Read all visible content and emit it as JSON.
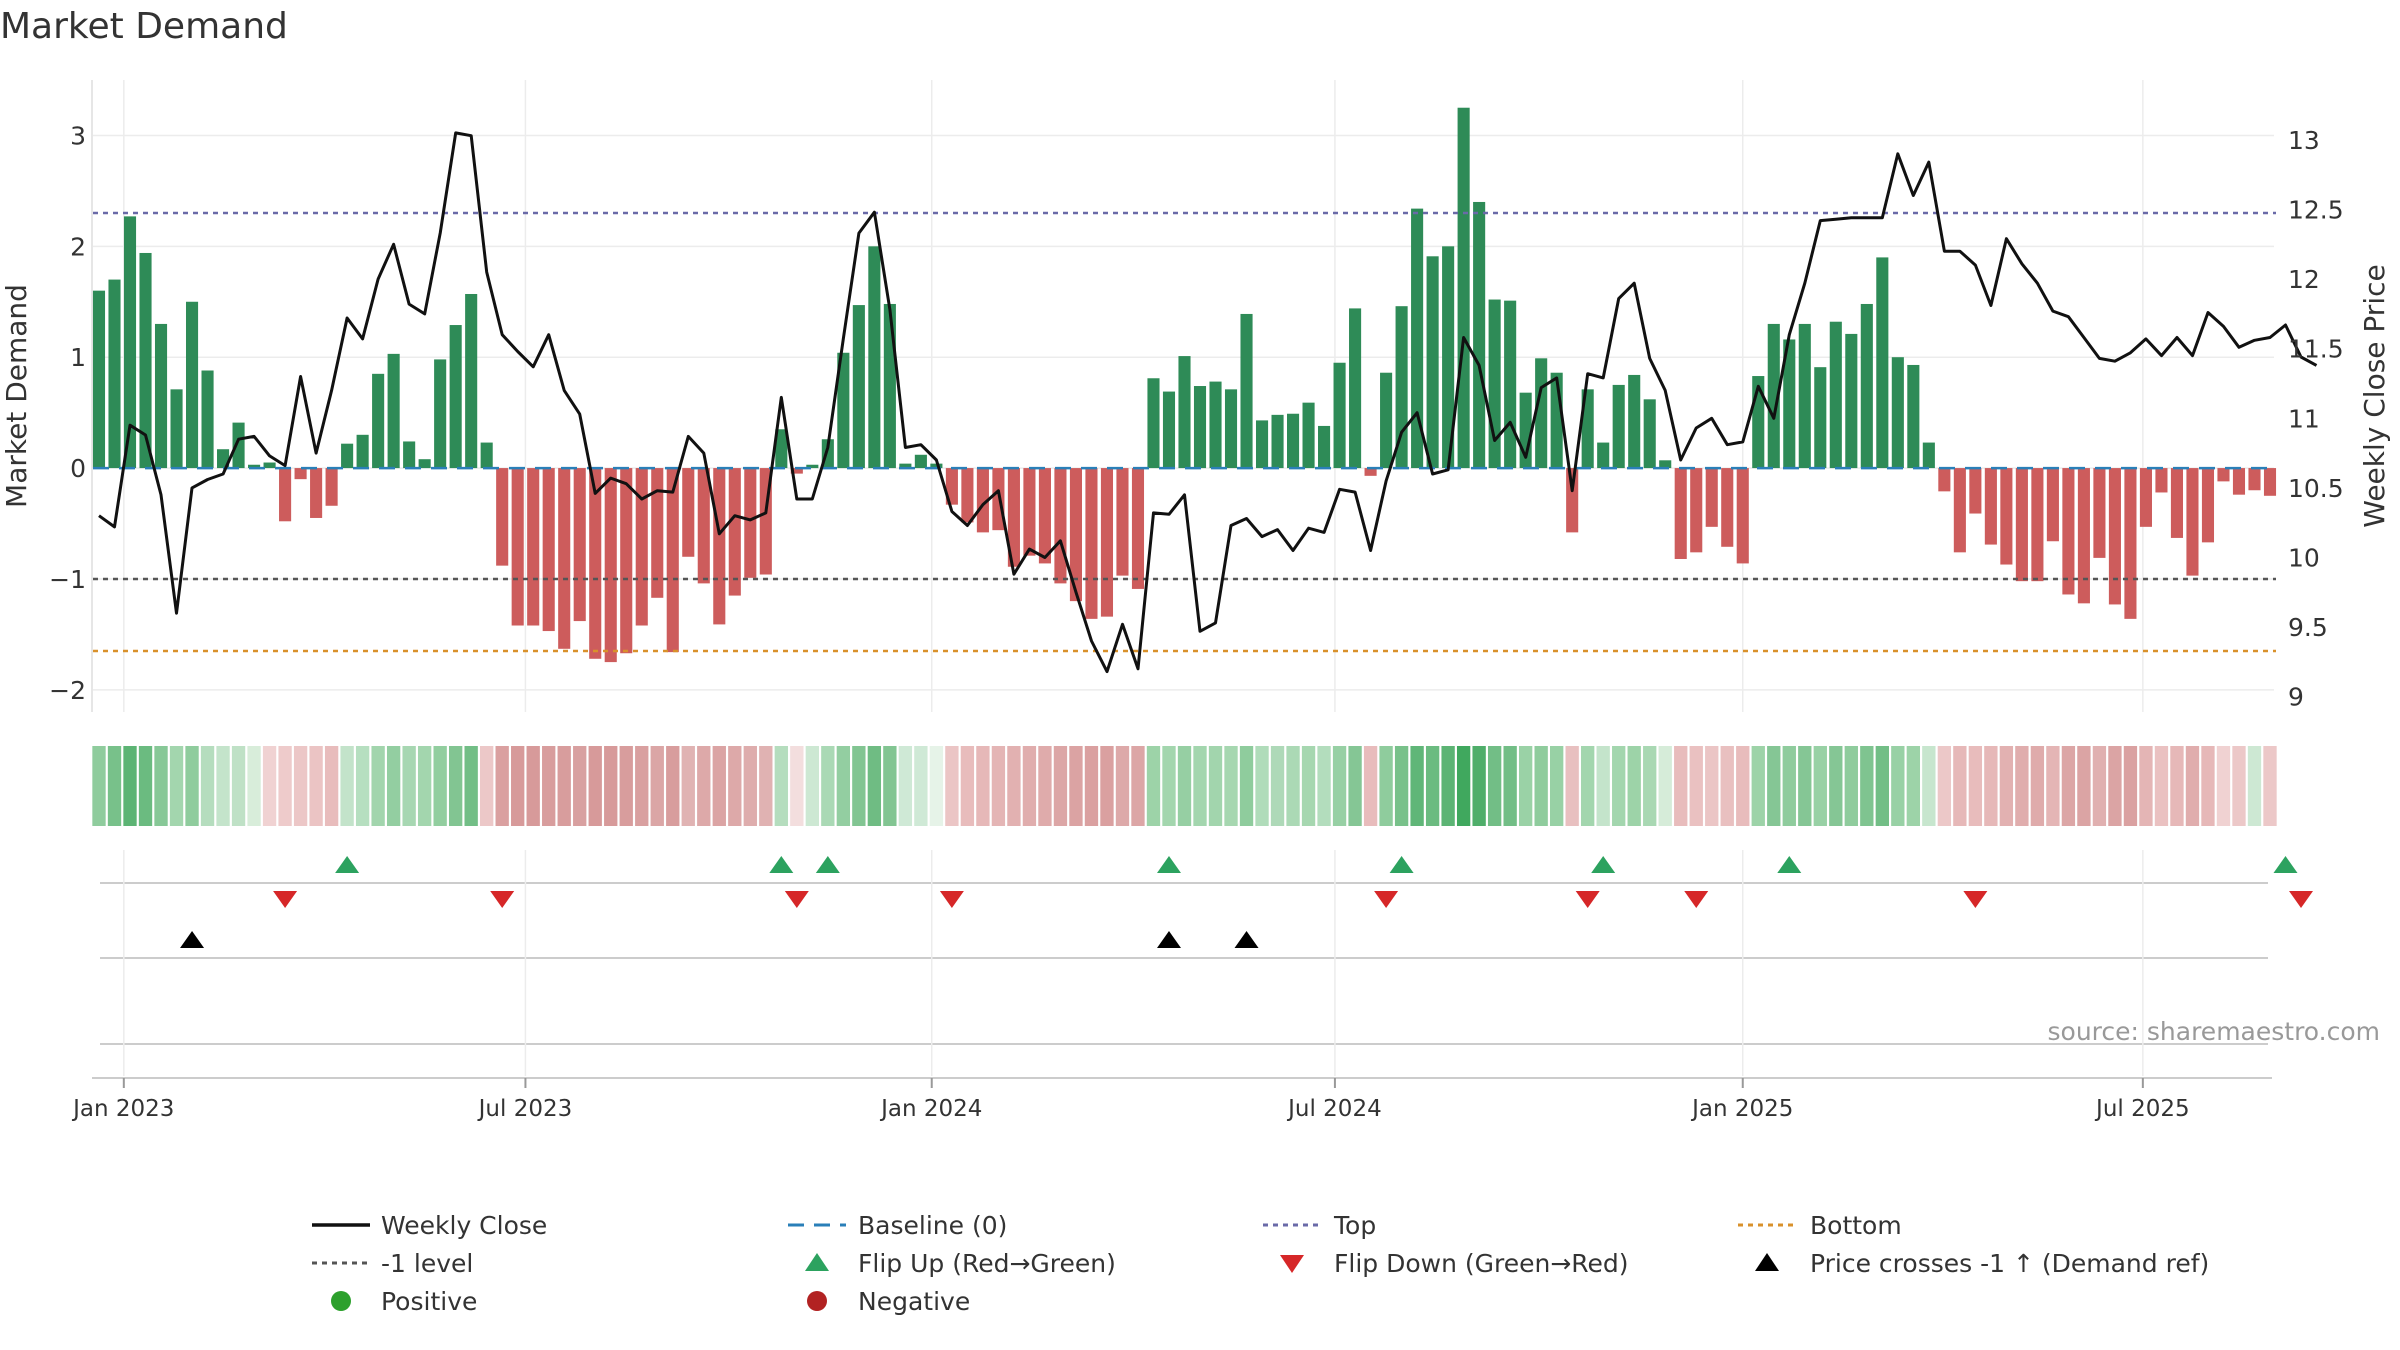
{
  "chart_data": {
    "type": "bar",
    "title": "Market Demand",
    "ylabel_left": "Market Demand",
    "ylabel_right": "Weekly Close Price",
    "source": "source: sharemaestro.com",
    "ylim_left": [
      -2.2,
      3.5
    ],
    "ylim_right": [
      8.89,
      13.43
    ],
    "yticks_left": [
      {
        "v": -2,
        "label": "−2"
      },
      {
        "v": -1,
        "label": "−1"
      },
      {
        "v": 0,
        "label": "0"
      },
      {
        "v": 1,
        "label": "1"
      },
      {
        "v": 2,
        "label": "2"
      },
      {
        "v": 3,
        "label": "3"
      }
    ],
    "yticks_right": [
      {
        "v": 9,
        "label": "9"
      },
      {
        "v": 9.5,
        "label": "9.5"
      },
      {
        "v": 10,
        "label": "10"
      },
      {
        "v": 10.5,
        "label": "10.5"
      },
      {
        "v": 11,
        "label": "11"
      },
      {
        "v": 11.5,
        "label": "11.5"
      },
      {
        "v": 12,
        "label": "12"
      },
      {
        "v": 12.5,
        "label": "12.5"
      },
      {
        "v": 13,
        "label": "13"
      }
    ],
    "xticks": [
      {
        "i": 1.6,
        "label": "Jan 2023"
      },
      {
        "i": 27.5,
        "label": "Jul 2023"
      },
      {
        "i": 53.7,
        "label": "Jan 2024"
      },
      {
        "i": 79.7,
        "label": "Jul 2024"
      },
      {
        "i": 106,
        "label": "Jan 2025"
      },
      {
        "i": 131.8,
        "label": "Jul 2025"
      }
    ],
    "lines": {
      "top": 2.3,
      "minus_one": -1,
      "bottom": -1.65,
      "baseline": 0
    },
    "series": [
      {
        "name": "Market Demand",
        "values": [
          1.6,
          1.7,
          2.27,
          1.94,
          1.3,
          0.71,
          1.5,
          0.88,
          0.17,
          0.41,
          0.03,
          0.05,
          -0.48,
          -0.1,
          -0.45,
          -0.34,
          0.22,
          0.3,
          0.85,
          1.03,
          0.24,
          0.08,
          0.98,
          1.29,
          1.57,
          0.23,
          -0.88,
          -1.42,
          -1.42,
          -1.47,
          -1.63,
          -1.38,
          -1.72,
          -1.75,
          -1.67,
          -1.42,
          -1.17,
          -1.66,
          -0.8,
          -1.04,
          -1.41,
          -1.15,
          -0.99,
          -0.96,
          0.35,
          -0.05,
          0.03,
          0.26,
          1.04,
          1.47,
          2.0,
          1.48,
          0.04,
          0.12,
          0.04,
          -0.33,
          -0.49,
          -0.58,
          -0.56,
          -0.89,
          -0.79,
          -0.86,
          -1.04,
          -1.2,
          -1.36,
          -1.34,
          -0.97,
          -1.09,
          0.81,
          0.69,
          1.01,
          0.74,
          0.78,
          0.71,
          1.39,
          0.43,
          0.48,
          0.49,
          0.59,
          0.38,
          0.95,
          1.44,
          -0.07,
          0.86,
          1.46,
          2.34,
          1.91,
          2.0,
          3.25,
          2.4,
          1.52,
          1.51,
          0.68,
          0.99,
          0.86,
          -0.58,
          0.71,
          0.23,
          0.75,
          0.84,
          0.62,
          0.07,
          -0.82,
          -0.76,
          -0.53,
          -0.71,
          -0.86,
          0.83,
          1.3,
          1.16,
          1.3,
          0.91,
          1.32,
          1.21,
          1.48,
          1.9,
          1.0,
          0.93,
          0.23,
          -0.21,
          -0.76,
          -0.41,
          -0.69,
          -0.87,
          -1.02,
          -1.02,
          -0.66,
          -1.14,
          -1.22,
          -0.81,
          -1.23,
          -1.36,
          -0.53,
          -0.22,
          -0.63,
          -0.97,
          -0.67,
          -0.12,
          -0.24,
          -0.2,
          -0.25
        ]
      },
      {
        "name": "Weekly Close",
        "values": [
          10.3,
          10.22,
          10.95,
          10.88,
          10.45,
          9.6,
          10.5,
          10.56,
          10.6,
          10.85,
          10.87,
          10.73,
          10.66,
          11.3,
          10.75,
          11.2,
          11.72,
          11.57,
          12.0,
          12.25,
          11.82,
          11.75,
          12.33,
          13.05,
          13.03,
          12.05,
          11.6,
          11.48,
          11.37,
          11.6,
          11.2,
          11.03,
          10.46,
          10.57,
          10.53,
          10.42,
          10.48,
          10.47,
          10.87,
          10.75,
          10.17,
          10.3,
          10.27,
          10.32,
          11.15,
          10.42,
          10.42,
          10.79,
          11.57,
          12.33,
          12.48,
          11.78,
          10.79,
          10.81,
          10.7,
          10.33,
          10.23,
          10.38,
          10.48,
          9.88,
          10.06,
          10.0,
          10.12,
          9.75,
          9.4,
          9.18,
          9.52,
          9.2,
          10.32,
          10.31,
          10.45,
          9.47,
          9.53,
          10.23,
          10.28,
          10.15,
          10.2,
          10.05,
          10.21,
          10.18,
          10.49,
          10.47,
          10.05,
          10.55,
          10.9,
          11.04,
          10.6,
          10.63,
          11.58,
          11.38,
          10.84,
          10.97,
          10.72,
          11.22,
          11.29,
          10.48,
          11.32,
          11.29,
          11.86,
          11.97,
          11.43,
          11.2,
          10.7,
          10.93,
          11.0,
          10.81,
          10.83,
          11.23,
          11.0,
          11.6,
          11.97,
          12.42,
          12.43,
          12.44,
          12.44,
          12.44,
          12.9,
          12.6,
          12.84,
          12.2,
          12.2,
          12.1,
          11.81,
          12.29,
          12.11,
          11.97,
          11.77,
          11.73,
          11.58,
          11.43,
          11.41,
          11.47,
          11.57,
          11.45,
          11.58,
          11.45,
          11.76,
          11.66,
          11.51,
          11.56,
          11.58,
          11.67,
          11.44,
          11.38
        ]
      }
    ],
    "heat_strip": [
      "#8fcc9d",
      "#78c18a",
      "#5cb474",
      "#6bbb80",
      "#87c897",
      "#a3d6ae",
      "#8fcc9d",
      "#b5ddbe",
      "#c4e4cb",
      "#bfe1c6",
      "#d8edda",
      "#f0d2d2",
      "#eecbcb",
      "#ecc7c7",
      "#ebc4c4",
      "#e8bcbc",
      "#c3e3ca",
      "#b6dfc0",
      "#a2d5ad",
      "#93cea1",
      "#a7d7b2",
      "#a3d6ae",
      "#92ce9f",
      "#82c592",
      "#72be86",
      "#ecc8c8",
      "#daa0a0",
      "#d79a9a",
      "#d79a9a",
      "#d89d9d",
      "#d89d9d",
      "#d8a0a0",
      "#d79a9a",
      "#d79a9a",
      "#d89d9d",
      "#d9a0a0",
      "#dba6a6",
      "#d89d9d",
      "#e0b3b3",
      "#dda9a9",
      "#dba4a4",
      "#dda9a9",
      "#deadad",
      "#e0b2b2",
      "#b5ddbe",
      "#f3dede",
      "#cde8d3",
      "#aad9b5",
      "#93cea1",
      "#82c592",
      "#6fbc83",
      "#82c592",
      "#cfe9d6",
      "#cfe9d6",
      "#e6f3e8",
      "#ebc5c5",
      "#e8bcbc",
      "#e6b8b8",
      "#e4b5b5",
      "#e2b1b1",
      "#e0adad",
      "#dfabab",
      "#dca6a6",
      "#dba3a3",
      "#daa0a0",
      "#daa0a0",
      "#dda9a9",
      "#dca6a6",
      "#9dd3a8",
      "#a3d6ae",
      "#96cfa3",
      "#a3d6ae",
      "#a2d5ad",
      "#a6d7b0",
      "#8fcc9d",
      "#b0dcba",
      "#aed9b8",
      "#abd9b5",
      "#a6d7b0",
      "#b3ddbd",
      "#97d0a4",
      "#85c695",
      "#e8bcbc",
      "#8fcc9d",
      "#78c18a",
      "#60b678",
      "#6bbb80",
      "#5cb474",
      "#40a85e",
      "#4fae6a",
      "#72be86",
      "#72be86",
      "#9ad2a6",
      "#8fcc9d",
      "#98d1a5",
      "#e8c0c0",
      "#a3d6ae",
      "#c4e4cb",
      "#a3d6ae",
      "#9dd3a8",
      "#a9d8b3",
      "#d6ecd9",
      "#e8bcbc",
      "#eac1c1",
      "#ebc5c5",
      "#e9c0c0",
      "#e8bcbc",
      "#9dd3a8",
      "#85c695",
      "#8fcc9d",
      "#85c695",
      "#98d1a5",
      "#85c695",
      "#8fcc9d",
      "#7fc490",
      "#72be86",
      "#98d1a5",
      "#9dd3a8",
      "#c7e6ce",
      "#ecc8c8",
      "#e6b8b8",
      "#e8bcbc",
      "#e6b8b8",
      "#e2b1b1",
      "#e0adad",
      "#dfabab",
      "#e4b5b5",
      "#dca6a6",
      "#dba4a4",
      "#e0b0b0",
      "#dba4a4",
      "#daa1a1",
      "#e4b5b5",
      "#eac1c1",
      "#e6b8b8",
      "#e0adad",
      "#e6b8b8",
      "#f0d2d2",
      "#ecc8c8",
      "#cde8d3",
      "#ecc8c8"
    ],
    "flip_up_idx": [
      16,
      44,
      47,
      69,
      84,
      97,
      109,
      141
    ],
    "flip_down_idx": [
      12,
      26,
      45,
      55,
      83,
      96,
      103,
      121,
      142
    ],
    "price_cross_idx": [
      6,
      69,
      74
    ],
    "legend": [
      {
        "key": "weekly_close",
        "label": "Weekly Close"
      },
      {
        "key": "baseline",
        "label": "Baseline (0)"
      },
      {
        "key": "top",
        "label": "Top"
      },
      {
        "key": "bottom",
        "label": "Bottom"
      },
      {
        "key": "minus_one",
        "label": "-1 level"
      },
      {
        "key": "flip_up",
        "label": "Flip Up (Red→Green)"
      },
      {
        "key": "flip_down",
        "label": "Flip Down (Green→Red)"
      },
      {
        "key": "price_cross",
        "label": "Price crosses -1 ↑ (Demand ref)"
      },
      {
        "key": "positive",
        "label": "Positive"
      },
      {
        "key": "negative",
        "label": "Negative"
      }
    ]
  },
  "colors": {
    "positive": "#2e8b57",
    "negative": "#cd5c5c",
    "price_line": "#111111",
    "top_line": "#6a6aa8",
    "minus_one_line": "#555555",
    "bottom_line": "#d9912b",
    "baseline": "#2a7fb8",
    "flip_up": "#2ca25f",
    "flip_down": "#d62728",
    "price_cross": "#000000",
    "legend_positive": "#2ca02c",
    "legend_negative": "#b22222"
  }
}
